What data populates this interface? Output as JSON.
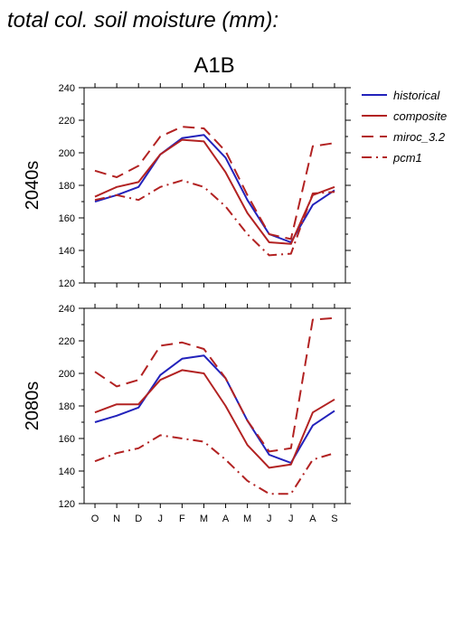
{
  "header": {
    "title": "total col. soil moisture (mm):"
  },
  "scenario": {
    "label": "A1B"
  },
  "legend": {
    "items": [
      {
        "label": "historical",
        "color": "#2222bb",
        "dash": "solid"
      },
      {
        "label": "composite",
        "color": "#b22222",
        "dash": "solid"
      },
      {
        "label": "miroc_3.2",
        "color": "#b22222",
        "dash": "dashed"
      },
      {
        "label": "pcm1",
        "color": "#b22222",
        "dash": "dashdot"
      }
    ]
  },
  "chart_data": [
    {
      "type": "line",
      "ylabel": "2040s",
      "categories": [
        "O",
        "N",
        "D",
        "J",
        "F",
        "M",
        "A",
        "M",
        "J",
        "J",
        "A",
        "S"
      ],
      "ylim": [
        120,
        240
      ],
      "yticks": [
        120,
        140,
        160,
        180,
        200,
        220,
        240
      ],
      "series": [
        {
          "name": "historical",
          "values": [
            170,
            174,
            179,
            199,
            209,
            211,
            197,
            171,
            150,
            145,
            168,
            177
          ]
        },
        {
          "name": "composite",
          "values": [
            173,
            179,
            182,
            199,
            208,
            207,
            188,
            163,
            145,
            144,
            174,
            179
          ]
        },
        {
          "name": "miroc_3.2",
          "values": [
            189,
            185,
            192,
            210,
            216,
            215,
            201,
            174,
            150,
            147,
            204,
            206
          ]
        },
        {
          "name": "pcm1",
          "values": [
            171,
            174,
            171,
            179,
            183,
            179,
            167,
            150,
            137,
            138,
            175,
            176
          ]
        }
      ]
    },
    {
      "type": "line",
      "ylabel": "2080s",
      "categories": [
        "O",
        "N",
        "D",
        "J",
        "F",
        "M",
        "A",
        "M",
        "J",
        "J",
        "A",
        "S"
      ],
      "ylim": [
        120,
        240
      ],
      "yticks": [
        120,
        140,
        160,
        180,
        200,
        220,
        240
      ],
      "series": [
        {
          "name": "historical",
          "values": [
            170,
            174,
            179,
            199,
            209,
            211,
            197,
            171,
            150,
            145,
            168,
            177
          ]
        },
        {
          "name": "composite",
          "values": [
            176,
            181,
            181,
            196,
            202,
            200,
            180,
            156,
            142,
            144,
            176,
            184
          ]
        },
        {
          "name": "miroc_3.2",
          "values": [
            201,
            192,
            196,
            217,
            219,
            215,
            197,
            171,
            152,
            154,
            233,
            234
          ]
        },
        {
          "name": "pcm1",
          "values": [
            146,
            151,
            154,
            162,
            160,
            158,
            147,
            134,
            126,
            126,
            147,
            151
          ]
        }
      ]
    }
  ]
}
